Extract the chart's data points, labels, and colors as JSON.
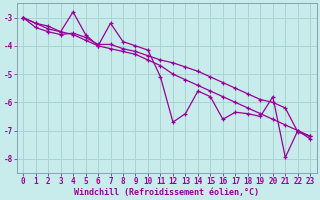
{
  "xlabel": "Windchill (Refroidissement éolien,°C)",
  "background_color": "#c8ecec",
  "grid_color": "#aad4d4",
  "line_color": "#990099",
  "spine_color": "#7799aa",
  "xlim": [
    -0.5,
    23.5
  ],
  "ylim": [
    -8.5,
    -2.5
  ],
  "yticks": [
    -8,
    -7,
    -6,
    -5,
    -4,
    -3
  ],
  "xticks": [
    0,
    1,
    2,
    3,
    4,
    5,
    6,
    7,
    8,
    9,
    10,
    11,
    12,
    13,
    14,
    15,
    16,
    17,
    18,
    19,
    20,
    21,
    22,
    23
  ],
  "series": [
    [
      0,
      -3.0,
      1,
      -3.2,
      2,
      -3.4,
      3,
      -3.5,
      4,
      -3.6,
      5,
      -3.8,
      6,
      -4.0,
      7,
      -4.1,
      8,
      -4.2,
      9,
      -4.3,
      10,
      -4.5,
      11,
      -4.7,
      12,
      -5.0,
      13,
      -5.2,
      14,
      -5.4,
      15,
      -5.6,
      16,
      -5.8,
      17,
      -6.0,
      18,
      -6.2,
      19,
      -6.4,
      20,
      -6.6,
      21,
      -6.8,
      22,
      -7.0,
      23,
      -7.2
    ],
    [
      0,
      -3.0,
      1,
      -3.35,
      2,
      -3.5,
      3,
      -3.6,
      4,
      -3.55,
      5,
      -3.7,
      6,
      -3.95,
      7,
      -3.95,
      8,
      -4.1,
      9,
      -4.2,
      10,
      -4.35,
      11,
      -4.5,
      12,
      -4.6,
      13,
      -4.75,
      14,
      -4.9,
      15,
      -5.1,
      16,
      -5.3,
      17,
      -5.5,
      18,
      -5.7,
      19,
      -5.9,
      20,
      -6.0,
      21,
      -6.2,
      22,
      -7.05,
      23,
      -7.2
    ],
    [
      0,
      -3.0,
      1,
      -3.2,
      2,
      -3.3,
      3,
      -3.5,
      4,
      -2.8,
      5,
      -3.6,
      6,
      -4.0,
      7,
      -3.2,
      8,
      -3.85,
      9,
      -4.0,
      10,
      -4.15,
      11,
      -5.1,
      12,
      -6.7,
      13,
      -6.4,
      14,
      -5.6,
      15,
      -5.8,
      16,
      -6.6,
      17,
      -6.35,
      18,
      -6.4,
      19,
      -6.5,
      20,
      -5.8,
      21,
      -7.95,
      22,
      -7.0,
      23,
      -7.3
    ]
  ],
  "tick_fontsize": 5.5,
  "xlabel_fontsize": 6.0,
  "marker_size": 3.5,
  "line_width": 0.9
}
